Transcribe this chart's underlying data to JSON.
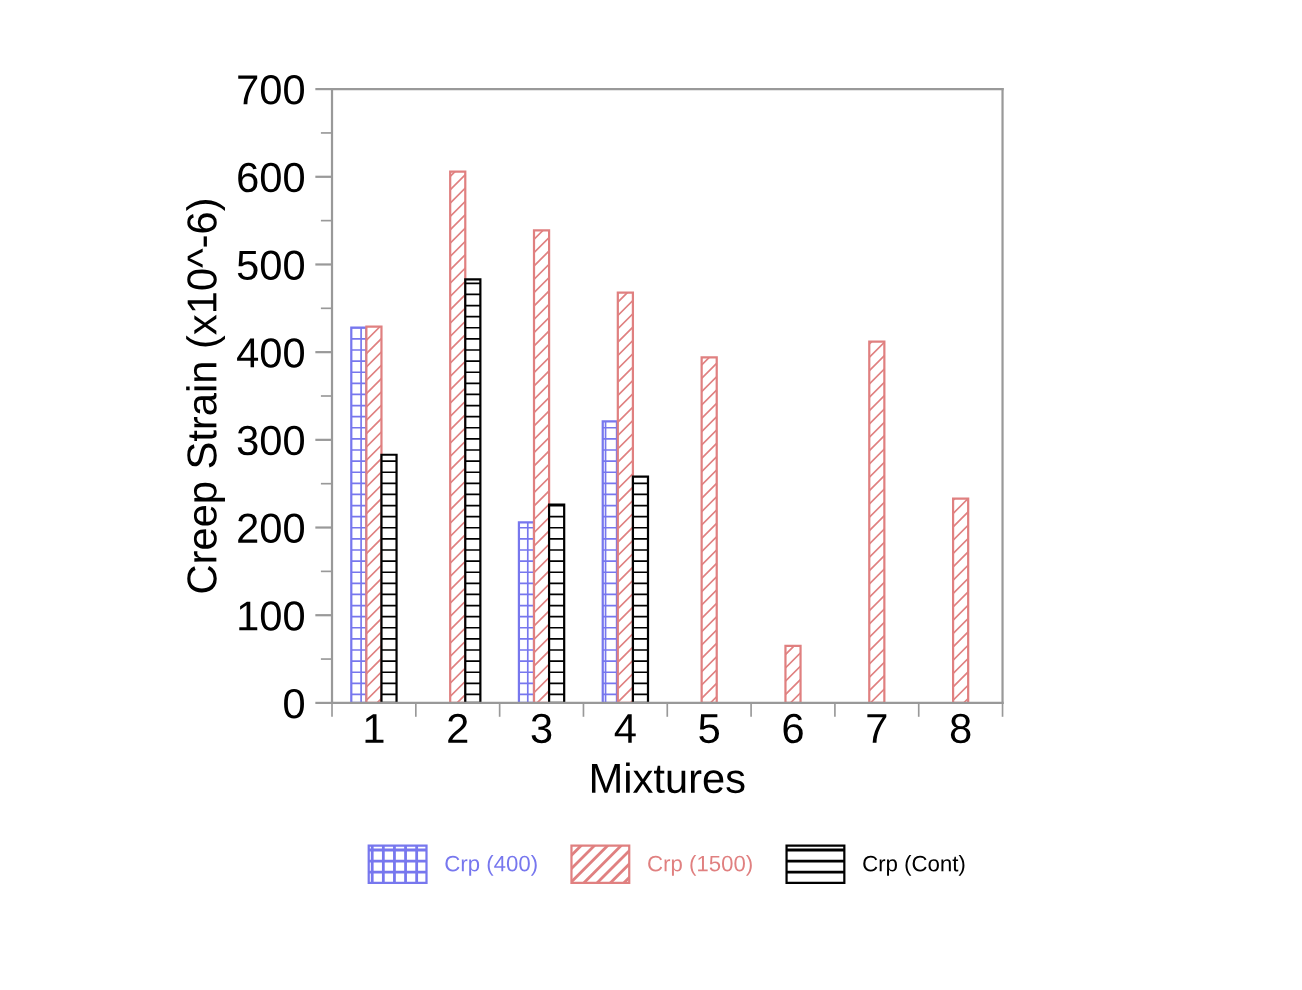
{
  "chart_data": {
    "type": "bar",
    "xlabel": "Mixtures",
    "ylabel": "Creep Strain (x10^-6)",
    "categories": [
      "1",
      "2",
      "3",
      "4",
      "5",
      "6",
      "7",
      "8"
    ],
    "series": [
      {
        "name": "Crp (400)",
        "color": "#7777ee",
        "values": [
          428,
          null,
          206,
          321,
          null,
          null,
          null,
          null
        ]
      },
      {
        "name": "Crp (1500)",
        "color": "#e08080",
        "values": [
          429,
          606,
          539,
          468,
          394,
          65,
          412,
          233
        ]
      },
      {
        "name": "Crp (Cont)",
        "color": "#000000",
        "values": [
          283,
          483,
          226,
          258,
          null,
          null,
          null,
          null
        ]
      }
    ],
    "ylim": [
      0,
      700
    ],
    "yticks": [
      0,
      100,
      200,
      300,
      400,
      500,
      600,
      700
    ],
    "grid": false,
    "legend": "bottom"
  }
}
